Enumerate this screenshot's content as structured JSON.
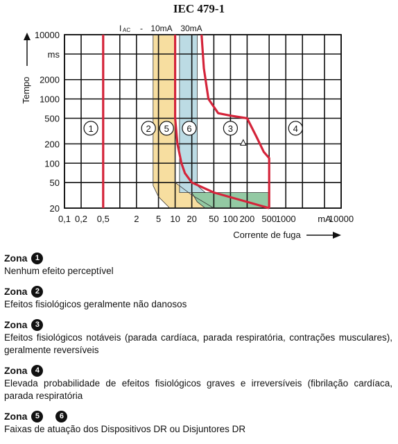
{
  "chart_data": {
    "type": "area",
    "title": "IEC 479-1",
    "header_label_main": "I",
    "header_label_sub": "AC",
    "header_dash": "-",
    "rcd_ratings": [
      "10mA",
      "30mA"
    ],
    "ylabel": "Tempo",
    "xlabel": "Corrente de fuga",
    "x_scale": "log",
    "y_scale": "log",
    "grid": true,
    "xlim": [
      0.1,
      10000
    ],
    "ylim": [
      20,
      10000
    ],
    "x_ticks": [
      {
        "value": 0.1,
        "label": "0,1"
      },
      {
        "value": 0.2,
        "label": "0,2"
      },
      {
        "value": 0.5,
        "label": "0,5"
      },
      {
        "value": 2,
        "label": "2"
      },
      {
        "value": 5,
        "label": "5"
      },
      {
        "value": 10,
        "label": "10"
      },
      {
        "value": 20,
        "label": "20"
      },
      {
        "value": 50,
        "label": "50"
      },
      {
        "value": 100,
        "label": "100"
      },
      {
        "value": 200,
        "label": "200"
      },
      {
        "value": 500,
        "label": "500"
      },
      {
        "value": 1000,
        "label": "1000"
      },
      {
        "value": 10000,
        "label": "10000"
      }
    ],
    "x_unit_label": "mA",
    "y_ticks": [
      {
        "value": 10000,
        "label": "10000"
      },
      {
        "value": 20,
        "label": "20"
      },
      {
        "value": 50,
        "label": "50"
      },
      {
        "value": 100,
        "label": "100"
      },
      {
        "value": 200,
        "label": "200"
      },
      {
        "value": 500,
        "label": "500"
      },
      {
        "value": 1000,
        "label": "1000"
      },
      {
        "value": 2000,
        "label": "2000"
      }
    ],
    "y_unit_label": "ms",
    "extra_x_gridlines": [
      1,
      2000,
      5000
    ],
    "extra_y_gridlines": [
      5000
    ],
    "boundary_curves": [
      {
        "label": "1",
        "points": [
          [
            0.5,
            20
          ],
          [
            0.5,
            10000
          ]
        ]
      },
      {
        "label": "2",
        "points": [
          [
            10,
            10000
          ],
          [
            10,
            500
          ],
          [
            11,
            200
          ],
          [
            13,
            100
          ],
          [
            15,
            70
          ],
          [
            20,
            50
          ],
          [
            50,
            35
          ],
          [
            200,
            25
          ],
          [
            500,
            20
          ]
        ]
      },
      {
        "label": "3",
        "points": [
          [
            30,
            10000
          ],
          [
            33,
            3000
          ],
          [
            40,
            1000
          ],
          [
            60,
            600
          ],
          [
            100,
            550
          ],
          [
            200,
            500
          ],
          [
            300,
            250
          ],
          [
            400,
            150
          ],
          [
            500,
            120
          ],
          [
            500,
            20
          ]
        ]
      }
    ],
    "rcd_bands": [
      {
        "label": "5",
        "color": "#f7dea0",
        "points": [
          [
            4,
            10000
          ],
          [
            10,
            10000
          ],
          [
            10,
            50
          ],
          [
            20,
            32
          ],
          [
            50,
            20
          ],
          [
            8,
            20
          ],
          [
            5,
            30
          ],
          [
            4,
            45
          ]
        ]
      },
      {
        "label": "6",
        "color": "#bcdbe4",
        "points": [
          [
            12,
            10000
          ],
          [
            25,
            10000
          ],
          [
            25,
            45
          ],
          [
            35,
            35
          ],
          [
            12,
            35
          ],
          [
            12,
            40
          ]
        ]
      },
      {
        "label": "green",
        "color": "#93c9a3",
        "points": [
          [
            20,
            35
          ],
          [
            500,
            35
          ],
          [
            500,
            20
          ],
          [
            35,
            20
          ],
          [
            25,
            25
          ]
        ]
      }
    ],
    "zone_markers": [
      {
        "label": "1",
        "x": 0.3,
        "y": 350
      },
      {
        "label": "2",
        "x": 3.3,
        "y": 350
      },
      {
        "label": "5",
        "x": 7,
        "y": 350
      },
      {
        "label": "6",
        "x": 18,
        "y": 350
      },
      {
        "label": "3",
        "x": 100,
        "y": 350
      },
      {
        "label": "4",
        "x": 1500,
        "y": 350
      }
    ],
    "arrow_marker": {
      "x": 170,
      "y": 210
    }
  },
  "zones": [
    {
      "title": "Zona",
      "badges": [
        "1"
      ],
      "description": "Nenhum efeito perceptível"
    },
    {
      "title": "Zona",
      "badges": [
        "2"
      ],
      "description": "Efeitos fisiológicos geralmente não danosos"
    },
    {
      "title": "Zona",
      "badges": [
        "3"
      ],
      "description": "Efeitos fisiológicos notáveis (parada cardíaca, parada respiratória, contrações musculares), geralmente reversíveis"
    },
    {
      "title": "Zona",
      "badges": [
        "4"
      ],
      "description": "Elevada probabilidade de efeitos fisiológicos graves e irreversíveis (fibrilação cardíaca, parada respiratória"
    },
    {
      "title": "Zona",
      "badges": [
        "5",
        "6"
      ],
      "description": "Faixas de atuação dos Dispositivos DR ou Disjuntores DR"
    }
  ]
}
